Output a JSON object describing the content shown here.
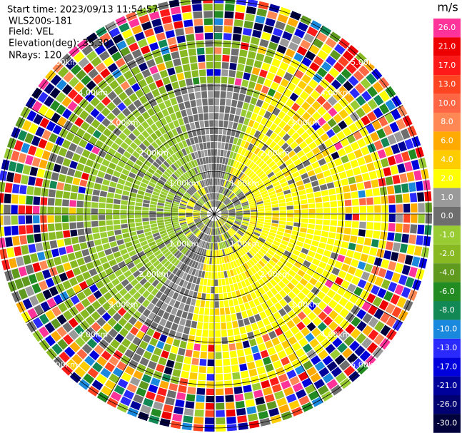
{
  "header": {
    "lines": [
      "Start time: 2023/09/13 11:54:57",
      "WLS200s-181",
      "Field: VEL",
      "Elevation(deg): 35.30",
      "NRays: 120"
    ]
  },
  "range_rings": {
    "labels": [
      "1.00km",
      "2.00km",
      "3.00km",
      "4.00km",
      "5.00km"
    ]
  },
  "colorbar": {
    "unit": "m/s",
    "ticks": [
      {
        "value": 26,
        "label": "26.0"
      },
      {
        "value": 21,
        "label": "21.0"
      },
      {
        "value": 17,
        "label": "17.0"
      },
      {
        "value": 13,
        "label": "13.0"
      },
      {
        "value": 10,
        "label": "10.0"
      },
      {
        "value": 8,
        "label": "8.0"
      },
      {
        "value": 6,
        "label": "6.0"
      },
      {
        "value": 4,
        "label": "4.0"
      },
      {
        "value": 2,
        "label": "2.0"
      },
      {
        "value": 1,
        "label": "1.0"
      },
      {
        "value": 0,
        "label": "0.0"
      },
      {
        "value": -1,
        "label": "-1.0"
      },
      {
        "value": -2,
        "label": "-2.0"
      },
      {
        "value": -4,
        "label": "-4.0"
      },
      {
        "value": -6,
        "label": "-6.0"
      },
      {
        "value": -8,
        "label": "-8.0"
      },
      {
        "value": -10,
        "label": "-10.0"
      },
      {
        "value": -13,
        "label": "-13.0"
      },
      {
        "value": -17,
        "label": "-17.0"
      },
      {
        "value": -21,
        "label": "-21.0"
      },
      {
        "value": -26,
        "label": "-26.0"
      },
      {
        "value": -30,
        "label": "-30.0"
      }
    ],
    "colors": [
      "#ff3399",
      "#ee0000",
      "#ff1a1a",
      "#ff4422",
      "#ff6644",
      "#ff8855",
      "#ffaa00",
      "#ffcc00",
      "#ffff00",
      "#9a9a9a",
      "#6e6e6e",
      "#99cc33",
      "#88b822",
      "#5f9a1e",
      "#228b22",
      "#128855",
      "#1a88dd",
      "#2a2aff",
      "#0000dd",
      "#00009a",
      "#000070",
      "#00003a"
    ]
  }
}
